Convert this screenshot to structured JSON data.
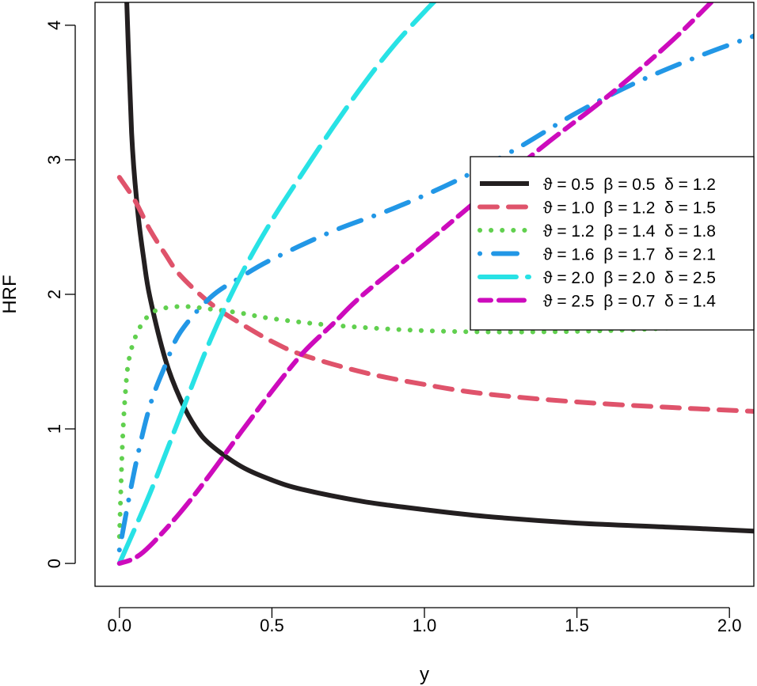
{
  "chart_data": {
    "type": "line",
    "xlabel": "y",
    "ylabel": "HRF",
    "xlim": [
      -0.08,
      2.08
    ],
    "ylim": [
      -0.17,
      4.17
    ],
    "xticks": [
      0.0,
      0.5,
      1.0,
      1.5,
      2.0
    ],
    "xtick_labels": [
      "0.0",
      "0.5",
      "1.0",
      "1.5",
      "2.0"
    ],
    "yticks": [
      0,
      1,
      2,
      3,
      4
    ],
    "ytick_labels": [
      "0",
      "1",
      "2",
      "3",
      "4"
    ],
    "grid": false,
    "legend_position": "right",
    "series": [
      {
        "name": "ϑ = 0.5  β = 0.5  δ = 1.2",
        "color": "#231f20",
        "style": "solid",
        "x": [
          0.02,
          0.04,
          0.06,
          0.08,
          0.1,
          0.15,
          0.2,
          0.25,
          0.3,
          0.4,
          0.5,
          0.6,
          0.8,
          1.0,
          1.2,
          1.5,
          1.8,
          2.08
        ],
        "y": [
          4.45,
          3.2,
          2.62,
          2.26,
          1.98,
          1.52,
          1.22,
          1.01,
          0.88,
          0.72,
          0.62,
          0.55,
          0.46,
          0.4,
          0.35,
          0.3,
          0.27,
          0.24
        ]
      },
      {
        "name": "ϑ = 1.0  β = 1.2  δ = 1.5",
        "color": "#df536b",
        "style": "dashed",
        "x": [
          0.0,
          0.05,
          0.1,
          0.15,
          0.2,
          0.3,
          0.4,
          0.5,
          0.6,
          0.8,
          1.0,
          1.2,
          1.5,
          1.8,
          2.08
        ],
        "y": [
          2.87,
          2.7,
          2.48,
          2.3,
          2.14,
          1.93,
          1.78,
          1.65,
          1.55,
          1.42,
          1.33,
          1.26,
          1.2,
          1.16,
          1.13
        ]
      },
      {
        "name": "ϑ = 1.2  β = 1.4  δ = 1.8",
        "color": "#61d04f",
        "style": "dotted",
        "x": [
          0.0,
          0.01,
          0.02,
          0.03,
          0.05,
          0.08,
          0.12,
          0.2,
          0.3,
          0.4,
          0.5,
          0.7,
          1.0,
          1.3,
          1.6,
          1.9,
          2.08
        ],
        "y": [
          0.2,
          0.9,
          1.28,
          1.5,
          1.67,
          1.8,
          1.88,
          1.91,
          1.89,
          1.86,
          1.82,
          1.77,
          1.73,
          1.72,
          1.73,
          1.76,
          1.78
        ]
      },
      {
        "name": "ϑ = 1.6  β = 1.7  δ = 2.1",
        "color": "#2297e6",
        "style": "dotdash",
        "x": [
          0.0,
          0.05,
          0.1,
          0.15,
          0.2,
          0.3,
          0.4,
          0.5,
          0.7,
          0.9,
          1.1,
          1.3,
          1.5,
          1.7,
          1.9,
          2.08
        ],
        "y": [
          0.1,
          0.7,
          1.17,
          1.47,
          1.72,
          1.98,
          2.13,
          2.26,
          2.47,
          2.64,
          2.84,
          3.08,
          3.35,
          3.58,
          3.77,
          3.92
        ]
      },
      {
        "name": "ϑ = 2.0  β = 2.0  δ = 2.5",
        "color": "#28e2e5",
        "style": "longdash",
        "x": [
          0.0,
          0.1,
          0.2,
          0.3,
          0.4,
          0.5,
          0.6,
          0.7,
          0.8,
          0.9,
          1.0,
          1.065
        ],
        "y": [
          0.0,
          0.52,
          1.1,
          1.67,
          2.15,
          2.55,
          2.9,
          3.24,
          3.56,
          3.85,
          4.1,
          4.25
        ]
      },
      {
        "name": "ϑ = 2.5  β = 0.7  δ = 1.4",
        "color": "#cd0bbc",
        "style": "twodash",
        "x": [
          0.0,
          0.05,
          0.1,
          0.2,
          0.3,
          0.4,
          0.5,
          0.6,
          0.7,
          0.8,
          1.0,
          1.2,
          1.4,
          1.6,
          1.8,
          1.94
        ],
        "y": [
          0.0,
          0.04,
          0.13,
          0.38,
          0.67,
          0.98,
          1.28,
          1.56,
          1.78,
          2.0,
          2.37,
          2.75,
          3.12,
          3.47,
          3.86,
          4.17
        ]
      }
    ]
  }
}
